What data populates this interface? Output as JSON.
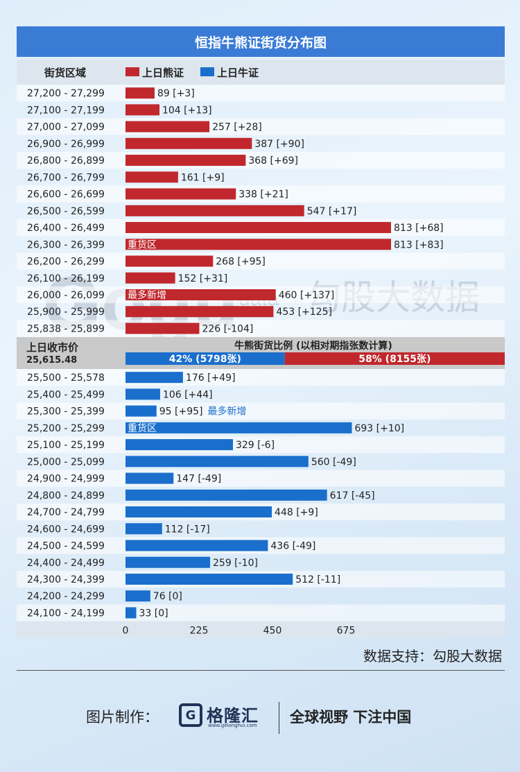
{
  "chart_data": {
    "type": "bar",
    "orientation": "horizontal",
    "title": "恒指牛熊证街货分布图",
    "category_header": "街货区域",
    "legend": [
      {
        "name": "上日熊证",
        "color": "#c0282d"
      },
      {
        "name": "上日牛证",
        "color": "#1a6fcc"
      }
    ],
    "xlim": [
      0,
      830
    ],
    "x_ticks": [
      0,
      225,
      450,
      675
    ],
    "bear_series": {
      "name": "上日熊证",
      "color": "#c0282d",
      "categories": [
        "27,200 - 27,299",
        "27,100 - 27,199",
        "27,000 - 27,099",
        "26,900 - 26,999",
        "26,800 - 26,899",
        "26,700 - 26,799",
        "26,600 - 26,699",
        "26,500 - 26,599",
        "26,400 - 26,499",
        "26,300 - 26,399",
        "26,200 - 26,299",
        "26,100 - 26,199",
        "26,000 - 26,099",
        "25,900 - 25,999",
        "25,838 - 25,899"
      ],
      "values": [
        89,
        104,
        257,
        387,
        368,
        161,
        338,
        547,
        813,
        813,
        268,
        152,
        460,
        453,
        226
      ],
      "changes": [
        "[+3]",
        "[+13]",
        "[+28]",
        "[+90]",
        "[+69]",
        "[+9]",
        "[+21]",
        "[+17]",
        "[+68]",
        "[+83]",
        "[+95]",
        "[+31]",
        "[+137]",
        "[+125]",
        "[-104]"
      ]
    },
    "bull_series": {
      "name": "上日牛证",
      "color": "#1a6fcc",
      "categories": [
        "25,500 - 25,578",
        "25,400 - 25,499",
        "25,300 - 25,399",
        "25,200 - 25,299",
        "25,100 - 25,199",
        "25,000 - 25,099",
        "24,900 - 24,999",
        "24,800 - 24,899",
        "24,700 - 24,799",
        "24,600 - 24,699",
        "24,500 - 24,599",
        "24,400 - 24,499",
        "24,300 - 24,399",
        "24,200 - 24,299",
        "24,100 - 24,199"
      ],
      "values": [
        176,
        106,
        95,
        693,
        329,
        560,
        147,
        617,
        448,
        112,
        436,
        259,
        512,
        76,
        33
      ],
      "changes": [
        "[+49]",
        "[+44]",
        "[+95]",
        "[+10]",
        "[-6]",
        "[-49]",
        "[-49]",
        "[-45]",
        "[+9]",
        "[-17]",
        "[-49]",
        "[-10]",
        "[-11]",
        "[0]",
        "[0]"
      ]
    },
    "annotations": {
      "bear_heavy": {
        "row": 9,
        "text": "重货区"
      },
      "bear_most_new": {
        "row": 12,
        "text": "最多新增"
      },
      "bull_heavy": {
        "row": 3,
        "text": "重货区"
      },
      "bull_most_new": {
        "row": 2,
        "text": "最多新增"
      }
    },
    "prev_close": {
      "label": "上日收市价",
      "value": "25,615.48"
    },
    "ratio": {
      "title": "牛熊街货比例 (以相对期指张数计算)",
      "bull_pct": 42,
      "bull_label": "42% (5798张)",
      "bear_pct": 58,
      "bear_label": "58% (8155张)"
    }
  },
  "footer": {
    "source": "数据支持：勾股大数据",
    "maker": "图片制作：",
    "logo_mark": "G",
    "logo_name": "格隆汇",
    "logo_url": "www.gelonghui.com",
    "slogan": "全球视野 下注中国"
  },
  "watermark": {
    "latin": "Gogu",
    "small": "data",
    "cn": "勾股大数据"
  }
}
